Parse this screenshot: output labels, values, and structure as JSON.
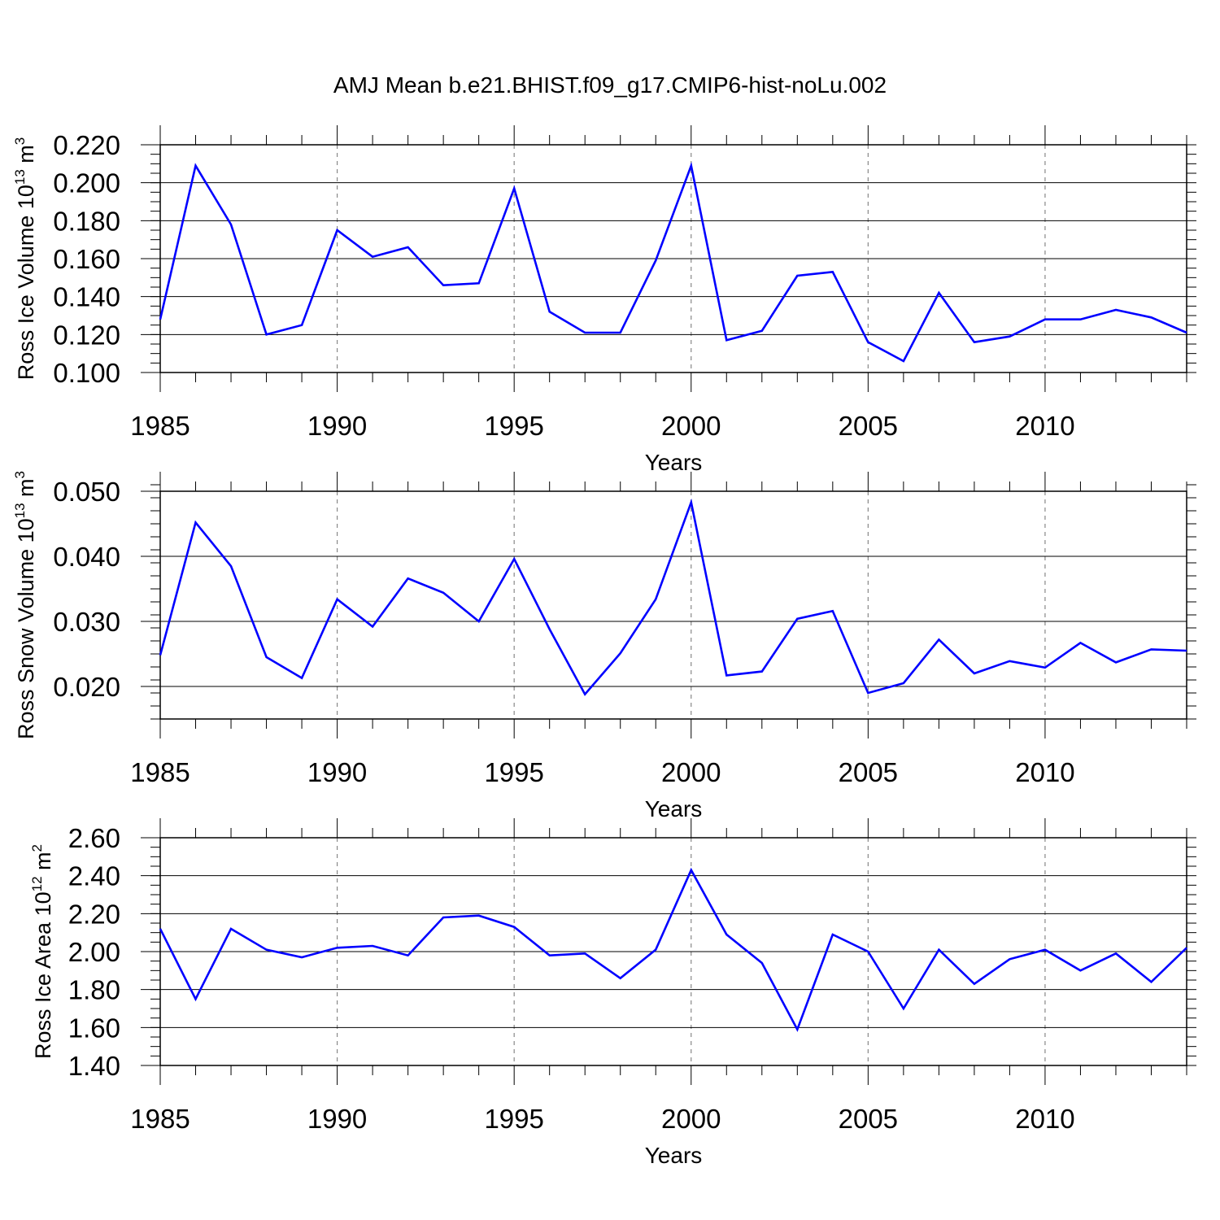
{
  "title": "AMJ Mean b.e21.BHIST.f09_g17.CMIP6-hist-noLu.002",
  "chart_data": [
    {
      "type": "line",
      "ylabel_main": "Ross Ice Volume 10",
      "ylabel_exp": "13",
      "ylabel_unit": " m",
      "ylabel_unit_exp": "3",
      "xlabel": "Years",
      "xlim": [
        1985,
        2014
      ],
      "ylim": [
        0.1,
        0.22
      ],
      "yticks": [
        0.1,
        0.12,
        0.14,
        0.16,
        0.18,
        0.2,
        0.22
      ],
      "ytick_labels": [
        "0.100",
        "0.120",
        "0.140",
        "0.160",
        "0.180",
        "0.200",
        "0.220"
      ],
      "yminor_step": 0.005,
      "xticks": [
        1985,
        1990,
        1995,
        2000,
        2005,
        2010
      ],
      "xtick_labels": [
        "1985",
        "1990",
        "1995",
        "2000",
        "2005",
        "2010"
      ],
      "line_color": "#0000ff",
      "series": [
        {
          "name": "Ross Ice Volume",
          "x": [
            1985,
            1986,
            1987,
            1988,
            1989,
            1990,
            1991,
            1992,
            1993,
            1994,
            1995,
            1996,
            1997,
            1998,
            1999,
            2000,
            2001,
            2002,
            2003,
            2004,
            2005,
            2006,
            2007,
            2008,
            2009,
            2010,
            2011,
            2012,
            2013,
            2014
          ],
          "values": [
            0.128,
            0.209,
            0.178,
            0.12,
            0.125,
            0.175,
            0.161,
            0.166,
            0.146,
            0.147,
            0.197,
            0.132,
            0.121,
            0.121,
            0.159,
            0.209,
            0.117,
            0.122,
            0.151,
            0.153,
            0.116,
            0.106,
            0.142,
            0.116,
            0.119,
            0.128,
            0.128,
            0.133,
            0.129,
            0.121
          ]
        }
      ]
    },
    {
      "type": "line",
      "ylabel_main": "Ross Snow Volume 10",
      "ylabel_exp": "13",
      "ylabel_unit": " m",
      "ylabel_unit_exp": "3",
      "xlabel": "Years",
      "xlim": [
        1985,
        2014
      ],
      "ylim": [
        0.015,
        0.05
      ],
      "yticks": [
        0.02,
        0.03,
        0.04,
        0.05
      ],
      "ytick_labels": [
        "0.020",
        "0.030",
        "0.040",
        "0.050"
      ],
      "yminor_step": 0.002,
      "xticks": [
        1985,
        1990,
        1995,
        2000,
        2005,
        2010
      ],
      "xtick_labels": [
        "1985",
        "1990",
        "1995",
        "2000",
        "2005",
        "2010"
      ],
      "line_color": "#0000ff",
      "series": [
        {
          "name": "Ross Snow Volume",
          "x": [
            1985,
            1986,
            1987,
            1988,
            1989,
            1990,
            1991,
            1992,
            1993,
            1994,
            1995,
            1996,
            1997,
            1998,
            1999,
            2000,
            2001,
            2002,
            2003,
            2004,
            2005,
            2006,
            2007,
            2008,
            2009,
            2010,
            2011,
            2012,
            2013,
            2014
          ],
          "values": [
            0.0248,
            0.0452,
            0.0385,
            0.0245,
            0.0213,
            0.0334,
            0.0292,
            0.0366,
            0.0344,
            0.03,
            0.0396,
            0.0288,
            0.0188,
            0.0251,
            0.0334,
            0.0483,
            0.0217,
            0.0223,
            0.0304,
            0.0316,
            0.019,
            0.0205,
            0.0272,
            0.022,
            0.0239,
            0.0229,
            0.0267,
            0.0237,
            0.0257,
            0.0255
          ]
        }
      ]
    },
    {
      "type": "line",
      "ylabel_main": "Ross Ice Area 10",
      "ylabel_exp": "12",
      "ylabel_unit": " m",
      "ylabel_unit_exp": "2",
      "xlabel": "Years",
      "xlim": [
        1985,
        2014
      ],
      "ylim": [
        1.4,
        2.6
      ],
      "yticks": [
        1.4,
        1.6,
        1.8,
        2.0,
        2.2,
        2.4,
        2.6
      ],
      "ytick_labels": [
        "1.40",
        "1.60",
        "1.80",
        "2.00",
        "2.20",
        "2.40",
        "2.60"
      ],
      "yminor_step": 0.05,
      "xticks": [
        1985,
        1990,
        1995,
        2000,
        2005,
        2010
      ],
      "xtick_labels": [
        "1985",
        "1990",
        "1995",
        "2000",
        "2005",
        "2010"
      ],
      "line_color": "#0000ff",
      "series": [
        {
          "name": "Ross Ice Area",
          "x": [
            1985,
            1986,
            1987,
            1988,
            1989,
            1990,
            1991,
            1992,
            1993,
            1994,
            1995,
            1996,
            1997,
            1998,
            1999,
            2000,
            2001,
            2002,
            2003,
            2004,
            2005,
            2006,
            2007,
            2008,
            2009,
            2010,
            2011,
            2012,
            2013,
            2014
          ],
          "values": [
            2.12,
            1.75,
            2.12,
            2.01,
            1.97,
            2.02,
            2.03,
            1.98,
            2.18,
            2.19,
            2.13,
            1.98,
            1.99,
            1.86,
            2.01,
            2.43,
            2.09,
            1.94,
            1.59,
            2.09,
            2.0,
            1.7,
            2.01,
            1.83,
            1.96,
            2.01,
            1.9,
            1.99,
            1.84,
            2.02
          ]
        }
      ]
    }
  ]
}
